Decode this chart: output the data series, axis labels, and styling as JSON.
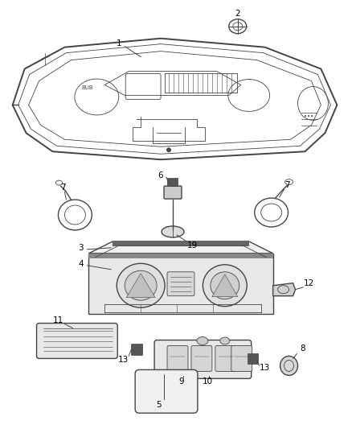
{
  "background_color": "#ffffff",
  "line_color": "#444444",
  "label_color": "#000000",
  "figsize": [
    4.38,
    5.33
  ],
  "dpi": 100,
  "label_fontsize": 7.5,
  "lw_main": 1.0,
  "lw_thin": 0.6,
  "lw_thick": 1.4
}
